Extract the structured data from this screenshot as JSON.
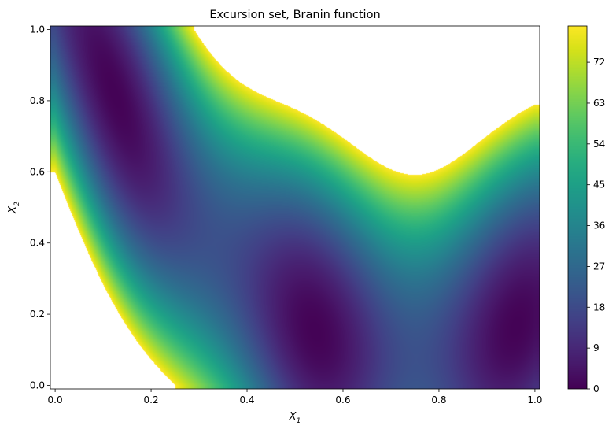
{
  "chart_data": {
    "type": "heatmap",
    "title": "Excursion set, Branin function",
    "xlabel": "X",
    "xlabel_subscript": "1",
    "ylabel": "X",
    "ylabel_subscript": "2",
    "function": "Branin",
    "x_domain": [
      0,
      1
    ],
    "y_domain": [
      0,
      1
    ],
    "xlim": [
      -0.01,
      1.01
    ],
    "ylim": [
      -0.01,
      1.01
    ],
    "excursion_threshold": 80,
    "x_ticks": [
      0.0,
      0.2,
      0.4,
      0.6,
      0.8,
      1.0
    ],
    "x_tick_labels": [
      "0.0",
      "0.2",
      "0.4",
      "0.6",
      "0.8",
      "1.0"
    ],
    "y_ticks": [
      0.0,
      0.2,
      0.4,
      0.6,
      0.8,
      1.0
    ],
    "y_tick_labels": [
      "0.0",
      "0.2",
      "0.4",
      "0.6",
      "0.8",
      "1.0"
    ],
    "colorbar": {
      "range": [
        0,
        80
      ],
      "ticks": [
        0,
        9,
        18,
        27,
        36,
        45,
        54,
        63,
        72
      ],
      "tick_labels": [
        "0",
        "9",
        "18",
        "27",
        "36",
        "45",
        "54",
        "63",
        "72"
      ],
      "colormap": "viridis"
    },
    "minima": [
      {
        "x": 0.124,
        "y": 0.818,
        "value": 0.4
      },
      {
        "x": 0.543,
        "y": 0.152,
        "value": 0.4
      },
      {
        "x": 0.962,
        "y": 0.165,
        "value": 0.4
      }
    ]
  }
}
